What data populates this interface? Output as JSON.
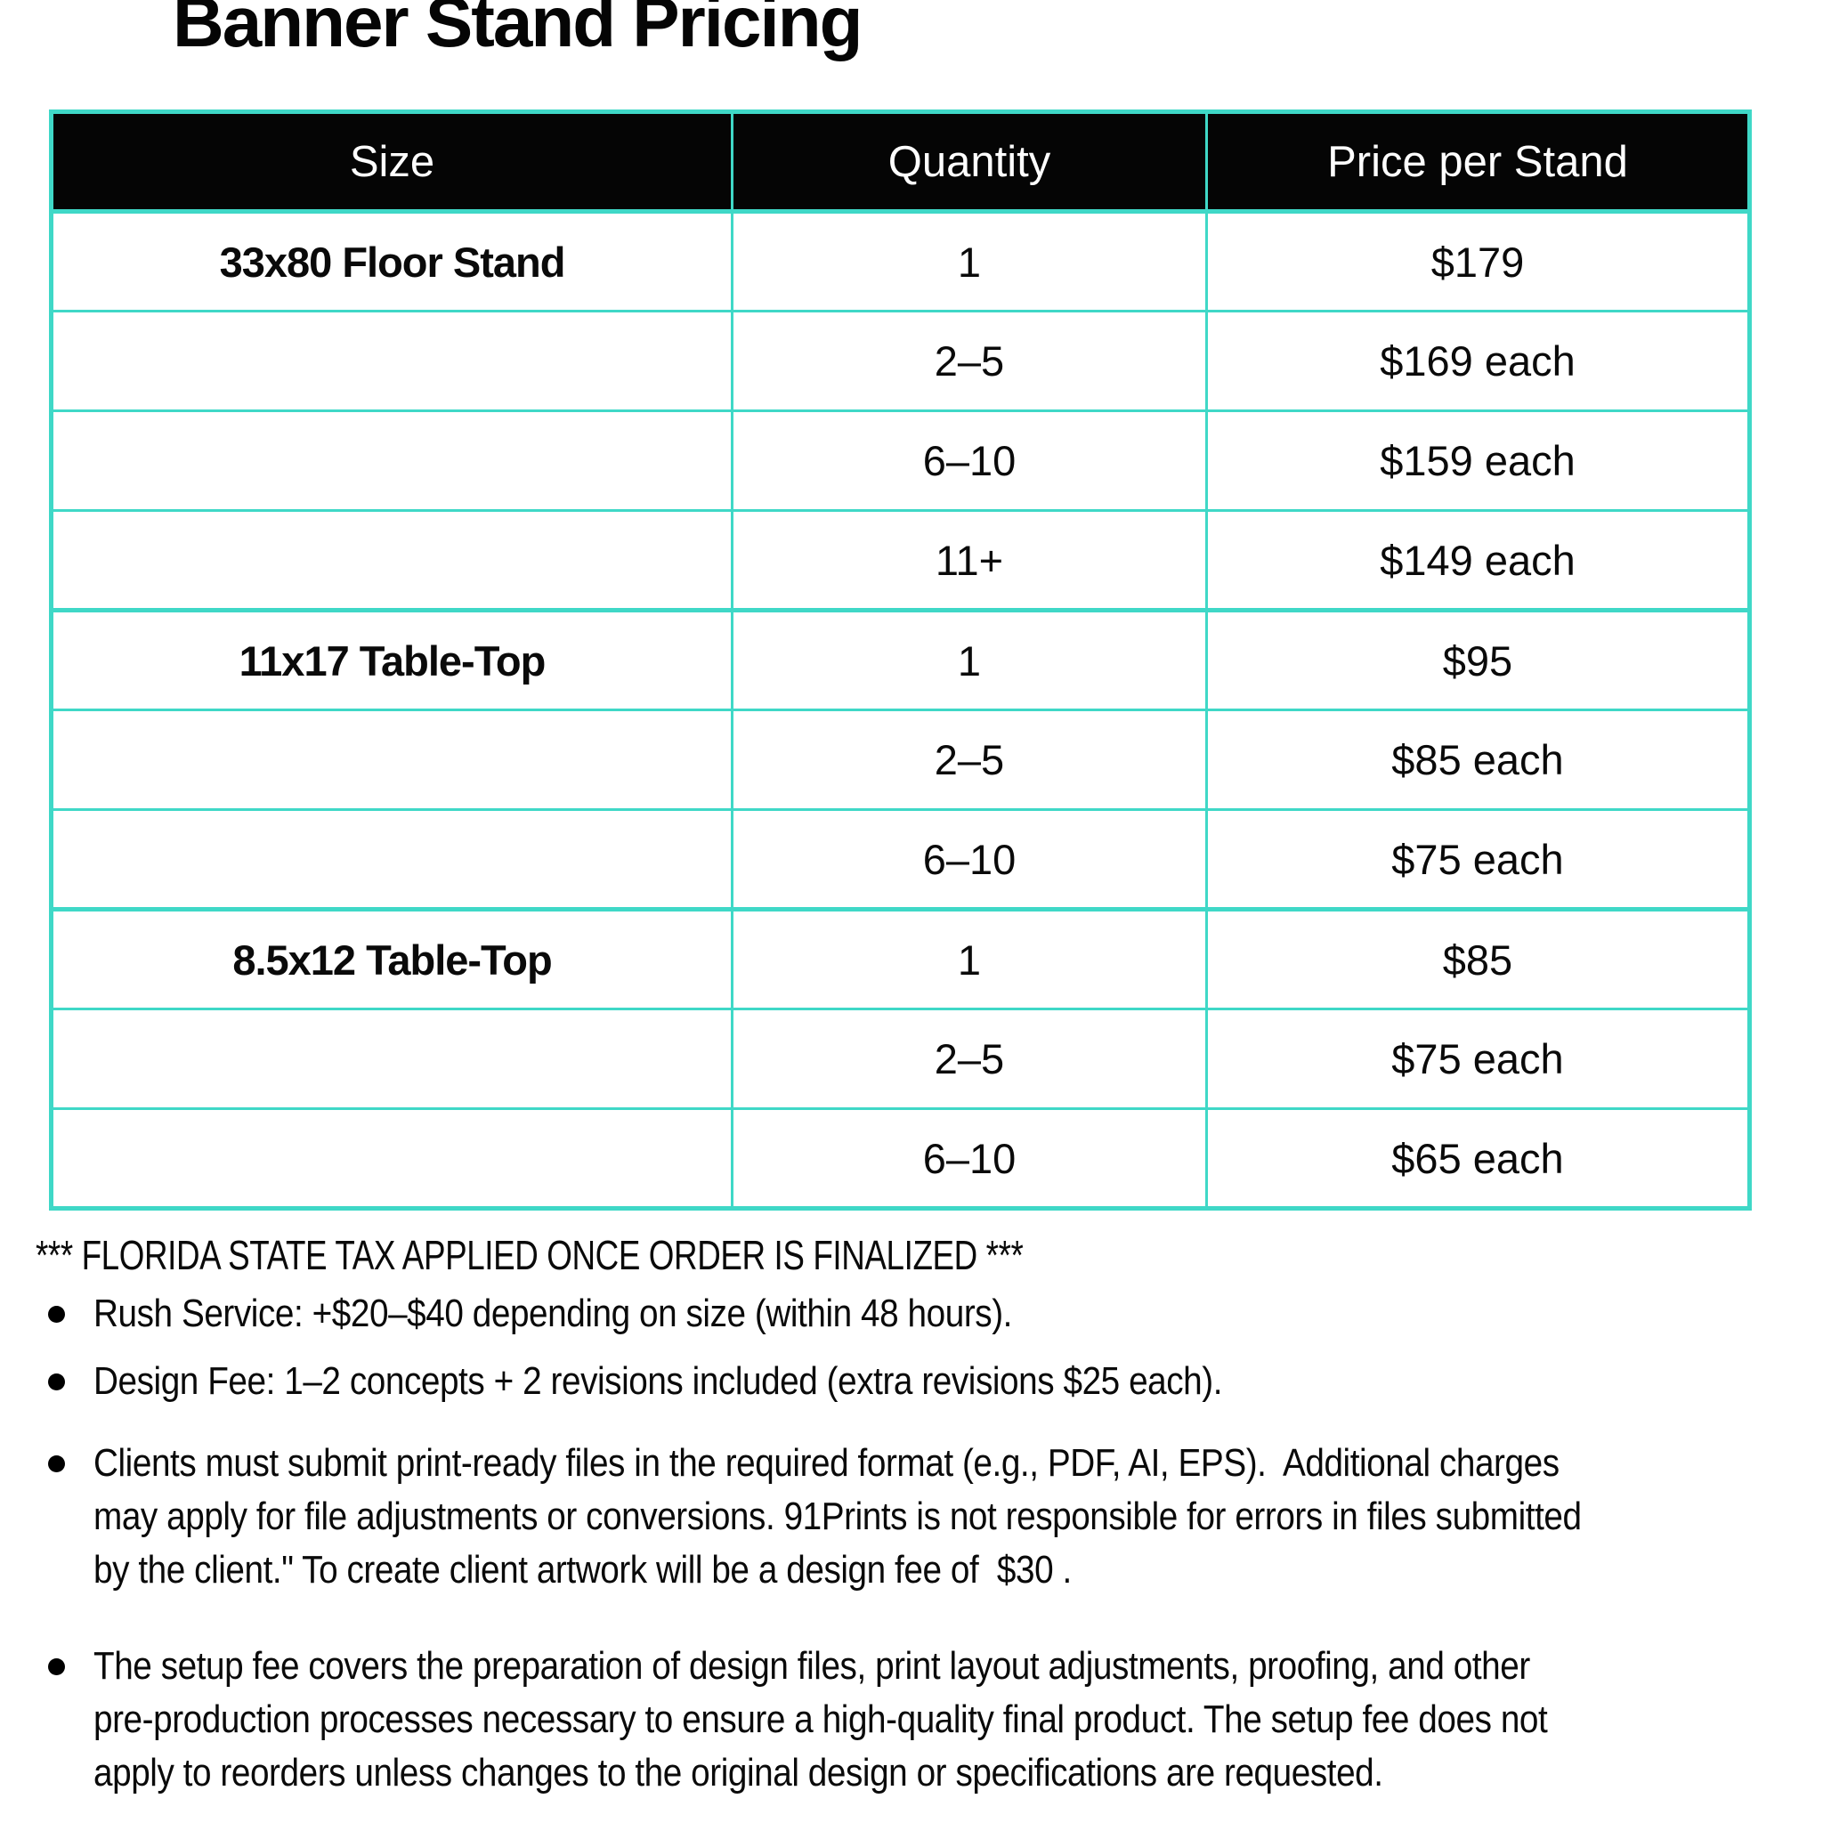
{
  "title": "Banner Stand Pricing",
  "colors": {
    "table_border_teal": "#3FD8C7",
    "header_background": "#050505",
    "header_text": "#FFFFFF",
    "body_text": "#0A0A0A"
  },
  "table": {
    "headers": [
      "Size",
      "Quantity",
      "Price per Stand"
    ],
    "rows": [
      {
        "size": "33x80 Floor Stand",
        "qty": "1",
        "price": "$179"
      },
      {
        "size": "",
        "qty": "2–5",
        "price": "$169 each"
      },
      {
        "size": "",
        "qty": "6–10",
        "price": "$159 each"
      },
      {
        "size": "",
        "qty": "11+",
        "price": "$149 each"
      },
      {
        "size": "11x17 Table-Top",
        "qty": "1",
        "price": "$95"
      },
      {
        "size": "",
        "qty": "2–5",
        "price": "$85 each"
      },
      {
        "size": "",
        "qty": "6–10",
        "price": "$75 each"
      },
      {
        "size": "8.5x12 Table-Top",
        "qty": "1",
        "price": "$85"
      },
      {
        "size": "",
        "qty": "2–5",
        "price": "$75 each"
      },
      {
        "size": "",
        "qty": "6–10",
        "price": "$65 each"
      }
    ]
  },
  "notes": {
    "tax": "*** FLORIDA STATE TAX APPLIED ONCE ORDER IS FINALIZED ***",
    "bullets": [
      {
        "lines": [
          "Rush Service: +$20–$40 depending on size (within 48 hours)."
        ]
      },
      {
        "lines": [
          "Design Fee: 1–2 concepts + 2 revisions included (extra revisions $25 each)."
        ]
      },
      {
        "lines": [
          "Clients must submit print-ready files in the required format (e.g., PDF, AI, EPS).  Additional charges",
          "may apply for file adjustments or conversions. 91Prints is not responsible for errors in files submitted",
          "by the client.\" To create client artwork will be a design fee of  $30 ."
        ]
      },
      {
        "lines": [
          "The setup fee covers the preparation of design files, print layout adjustments, proofing, and other",
          "pre-production processes necessary to ensure a high-quality final product. The setup fee does not",
          "apply to reorders unless changes to the original design or specifications are requested."
        ]
      }
    ]
  }
}
